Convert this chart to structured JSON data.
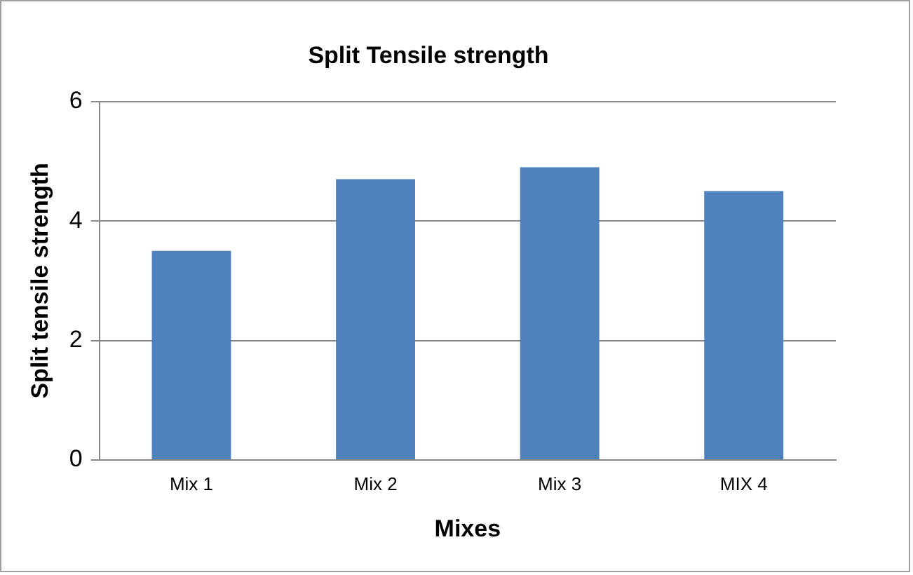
{
  "chart_data": {
    "type": "bar",
    "title": "Split Tensile strength",
    "xlabel": "Mixes",
    "ylabel": "Split tensile strength",
    "categories": [
      "Mix 1",
      "Mix 2",
      "Mix 3",
      "MIX 4"
    ],
    "values": [
      3.5,
      4.7,
      4.9,
      4.5
    ],
    "color": "#4f81bd",
    "ylim": [
      0,
      6
    ],
    "yticks": [
      0,
      2,
      4,
      6
    ],
    "grid": "y"
  }
}
